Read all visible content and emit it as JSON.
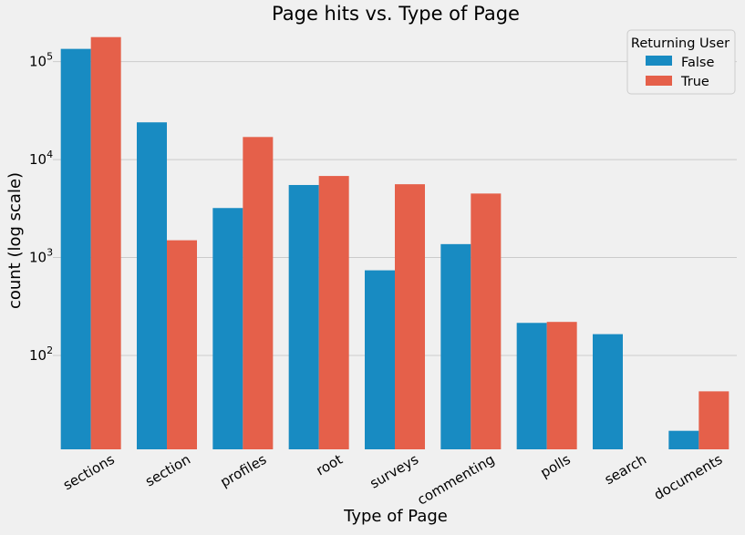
{
  "chart_data": {
    "type": "bar",
    "title": "Page hits vs. Type of Page",
    "xlabel": "Type of Page",
    "ylabel": "count (log scale)",
    "yscale": "log",
    "ylim": [
      11,
      210000
    ],
    "yticks": [
      {
        "value": 100,
        "base": "10",
        "exp": "2"
      },
      {
        "value": 1000,
        "base": "10",
        "exp": "3"
      },
      {
        "value": 10000,
        "base": "10",
        "exp": "4"
      },
      {
        "value": 100000,
        "base": "10",
        "exp": "5"
      }
    ],
    "grid": "horizontal",
    "legend_placement": "top-right",
    "legend_title": "Returning User",
    "categories": [
      "sections",
      "section",
      "profiles",
      "root",
      "surveys",
      "commenting",
      "polls",
      "search",
      "documents"
    ],
    "series": [
      {
        "name": "False",
        "color": "#188bc2",
        "values": [
          135000,
          24000,
          3200,
          5500,
          740,
          1370,
          215,
          165,
          17
        ]
      },
      {
        "name": "True",
        "color": "#e5604a",
        "values": [
          178000,
          1500,
          17000,
          6800,
          5600,
          4500,
          220,
          null,
          43
        ]
      }
    ]
  }
}
